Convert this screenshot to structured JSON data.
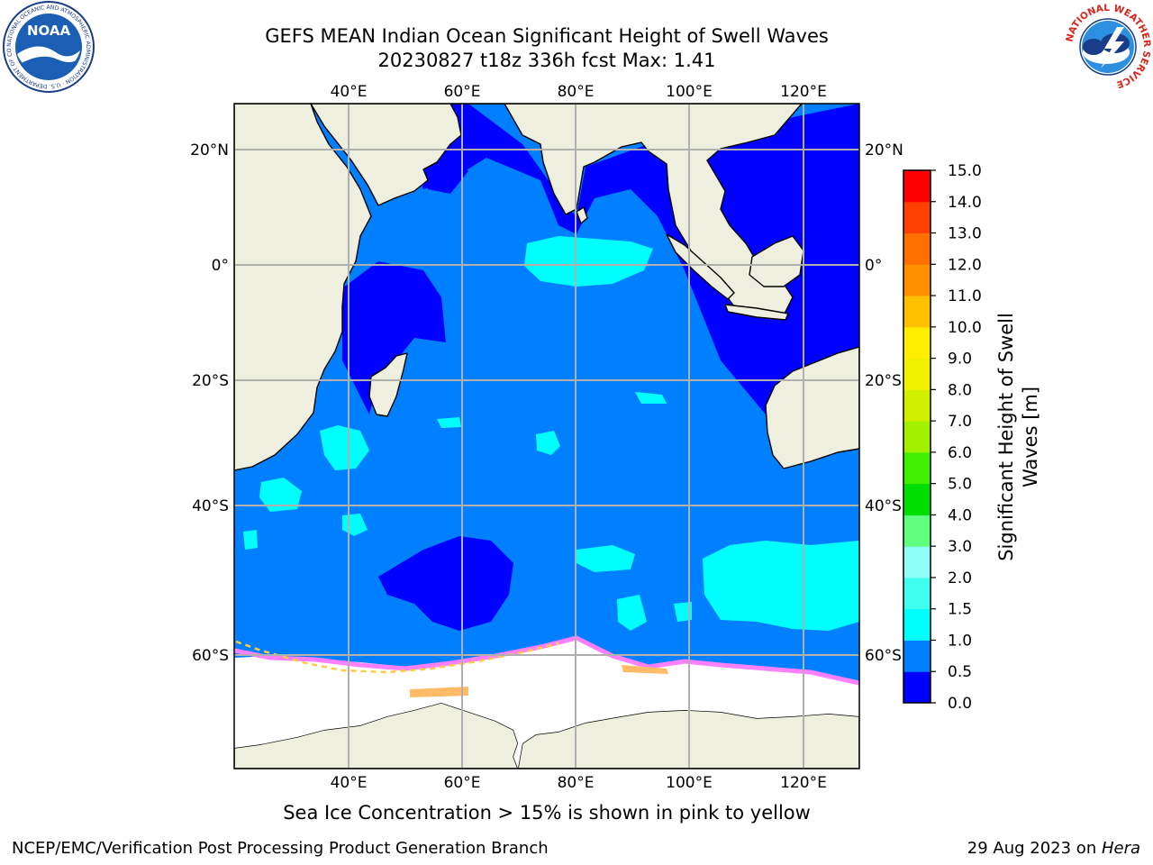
{
  "header": {
    "title_line1": "GEFS MEAN Indian Ocean Significant Height of Swell Waves",
    "title_line2": "20230827 t18z 336h fcst   Max: 1.41"
  },
  "logos": {
    "left": "NOAA",
    "left_ring_text": "NATIONAL OCEANIC AND ATMOSPHERIC ADMINISTRATION · U.S. DEPARTMENT OF COMMERCE",
    "right_ring_text": "NATIONAL WEATHER SERVICE"
  },
  "map": {
    "lon_labels": [
      "40°E",
      "60°E",
      "80°E",
      "100°E",
      "120°E"
    ],
    "lat_labels": [
      "20°N",
      "0°",
      "20°S",
      "40°S",
      "60°S"
    ],
    "colors": {
      "deep_blue": "#0000ff",
      "mid_blue": "#0080ff",
      "cyan": "#00ffff",
      "land": "#efefdf",
      "ice": "#ffffff"
    }
  },
  "colorbar": {
    "label_line1": "Significant Height of Swell",
    "label_line2": "Waves [m]",
    "ticks": [
      "0.0",
      "0.5",
      "1.0",
      "1.5",
      "2.0",
      "3.0",
      "4.0",
      "5.0",
      "6.0",
      "7.0",
      "8.0",
      "9.0",
      "10.0",
      "11.0",
      "12.0",
      "13.0",
      "14.0",
      "15.0"
    ],
    "colors": [
      "#0000ff",
      "#0080ff",
      "#00ffff",
      "#40ffee",
      "#90fff8",
      "#60ff80",
      "#00dd00",
      "#40ee00",
      "#a0f000",
      "#d0f000",
      "#f0f000",
      "#ffee00",
      "#ffc000",
      "#ff9000",
      "#ff7000",
      "#ff4000",
      "#ff0000"
    ]
  },
  "note": "Sea Ice Concentration > 15% is shown in pink to yellow",
  "footer": {
    "left": "NCEP/EMC/Verification Post Processing Product Generation Branch",
    "right_date": "29 Aug 2023 on ",
    "right_host": "Hera"
  }
}
